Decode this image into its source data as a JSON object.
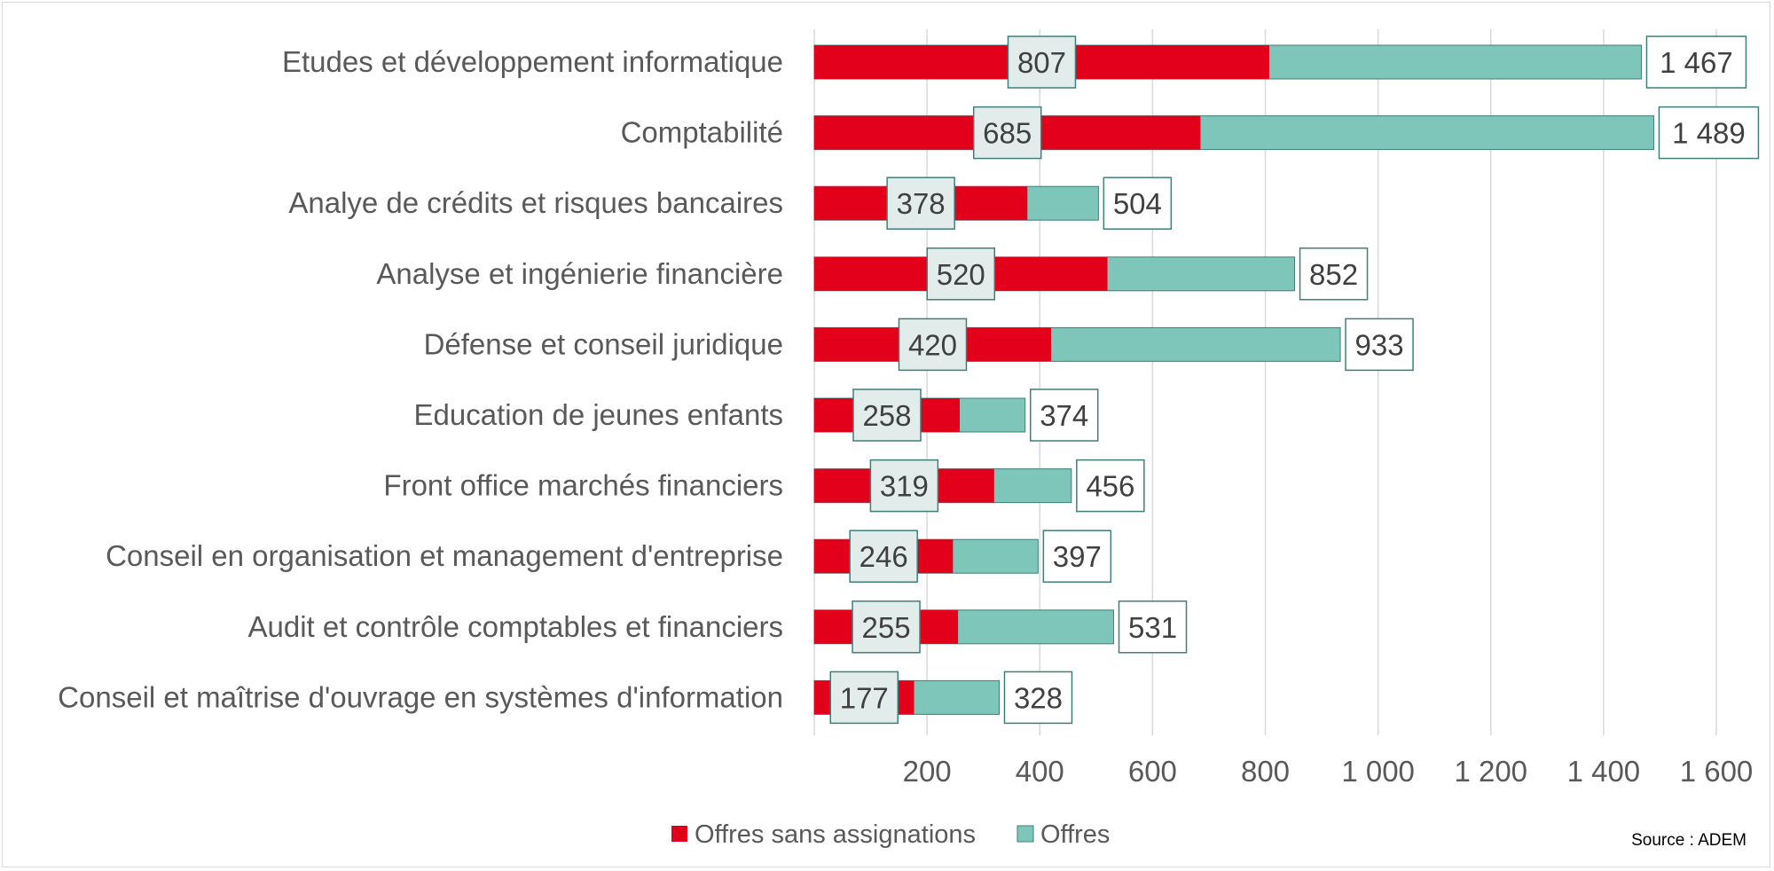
{
  "chart_data": {
    "type": "bar",
    "orientation": "horizontal",
    "categories": [
      "Etudes et développement informatique",
      "Comptabilité",
      "Analye de crédits et risques bancaires",
      "Analyse et ingénierie financière",
      "Défense et conseil juridique",
      "Education de jeunes enfants",
      "Front office marchés financiers",
      "Conseil en organisation et management d'entreprise",
      "Audit et contrôle comptables et financiers",
      "Conseil et maîtrise d'ouvrage en systèmes d'information"
    ],
    "series": [
      {
        "name": "Offres sans assignations",
        "values": [
          807,
          685,
          378,
          520,
          420,
          258,
          319,
          246,
          255,
          177
        ],
        "value_labels": [
          "807",
          "685",
          "378",
          "520",
          "420",
          "258",
          "319",
          "246",
          "255",
          "177"
        ],
        "color": "#e2001a"
      },
      {
        "name": "Offres",
        "values": [
          1467,
          1489,
          504,
          852,
          933,
          374,
          456,
          397,
          531,
          328
        ],
        "value_labels": [
          "1 467",
          "1 489",
          "504",
          "852",
          "933",
          "374",
          "456",
          "397",
          "531",
          "328"
        ],
        "color": "#7dc6b9"
      }
    ],
    "x_ticks": [
      200,
      400,
      600,
      800,
      1000,
      1200,
      1400,
      1600
    ],
    "x_tick_labels": [
      "200",
      "400",
      "600",
      "800",
      "1 000",
      "1 200",
      "1 400",
      "1 600"
    ],
    "xlim": [
      0,
      1600
    ],
    "grid": true,
    "legend": "bottom",
    "title": "",
    "xlabel": "",
    "ylabel": "",
    "source": "Source : ADEM"
  },
  "colors": {
    "grid": "#d9d9d9",
    "label_box_fill": "#e2ecea",
    "label_box_border": "#3f7f7a",
    "bar_border": "#3f7f7a"
  }
}
